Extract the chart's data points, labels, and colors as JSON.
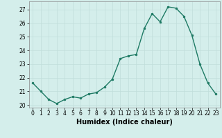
{
  "x": [
    0,
    1,
    2,
    3,
    4,
    5,
    6,
    7,
    8,
    9,
    10,
    11,
    12,
    13,
    14,
    15,
    16,
    17,
    18,
    19,
    20,
    21,
    22,
    23
  ],
  "y": [
    21.6,
    21.0,
    20.4,
    20.1,
    20.4,
    20.6,
    20.5,
    20.8,
    20.9,
    21.3,
    21.9,
    23.4,
    23.6,
    23.7,
    25.6,
    26.7,
    26.1,
    27.2,
    27.1,
    26.5,
    25.1,
    23.0,
    21.6,
    20.8
  ],
  "xlabel": "Humidex (Indice chaleur)",
  "ylim": [
    19.8,
    27.6
  ],
  "xlim": [
    -0.5,
    23.5
  ],
  "yticks": [
    20,
    21,
    22,
    23,
    24,
    25,
    26,
    27
  ],
  "xticks": [
    0,
    1,
    2,
    3,
    4,
    5,
    6,
    7,
    8,
    9,
    10,
    11,
    12,
    13,
    14,
    15,
    16,
    17,
    18,
    19,
    20,
    21,
    22,
    23
  ],
  "line_color": "#1e7a64",
  "marker_color": "#1e7a64",
  "bg_color": "#d4eeeb",
  "grid_color": "#c0deda",
  "xlabel_fontsize": 7,
  "tick_fontsize": 5.5
}
